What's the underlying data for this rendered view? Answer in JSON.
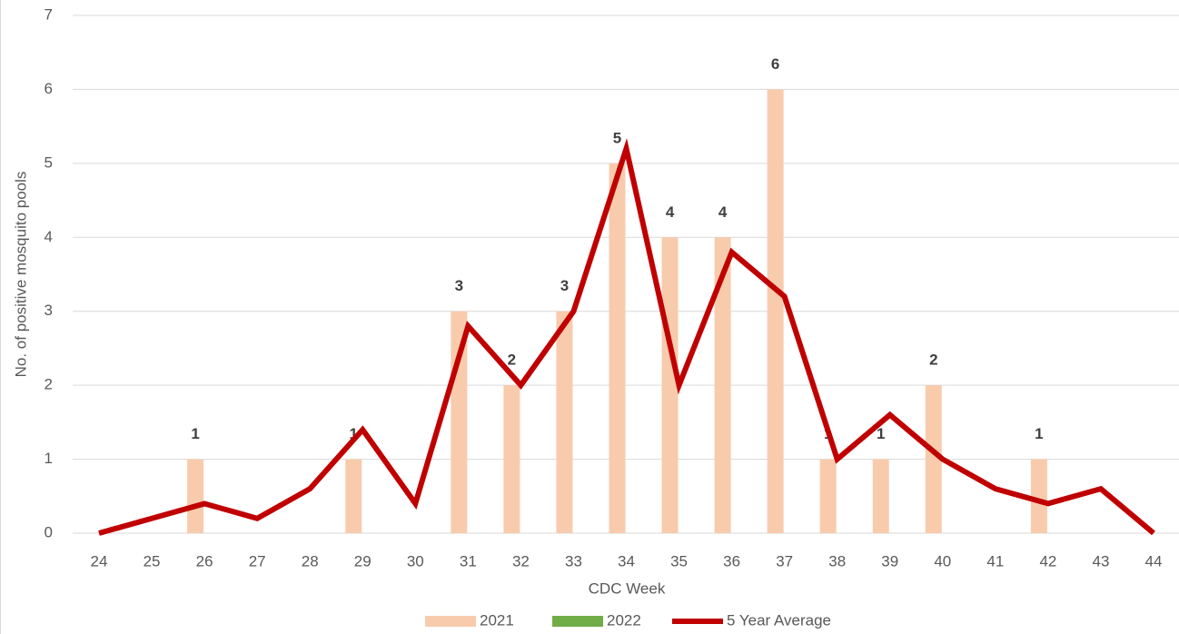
{
  "chart_data": {
    "type": "bar",
    "x_label": "CDC Week",
    "y_label": "No. of positive mosquito pools",
    "categories": [
      "24",
      "25",
      "26",
      "27",
      "28",
      "29",
      "30",
      "31",
      "32",
      "33",
      "34",
      "35",
      "36",
      "37",
      "38",
      "39",
      "40",
      "41",
      "42",
      "43",
      "44"
    ],
    "series": [
      {
        "name": "2021",
        "type": "bar",
        "color": "#f8cbad",
        "values": [
          null,
          null,
          1,
          null,
          null,
          1,
          null,
          3,
          2,
          3,
          5,
          4,
          4,
          6,
          1,
          1,
          2,
          null,
          1,
          null,
          null
        ]
      },
      {
        "name": "2022",
        "type": "bar",
        "color": "#70ad47",
        "values": [
          null,
          null,
          null,
          null,
          null,
          null,
          null,
          null,
          null,
          null,
          null,
          null,
          null,
          null,
          null,
          null,
          null,
          null,
          null,
          null,
          null
        ]
      },
      {
        "name": "5 Year Average",
        "type": "line",
        "color": "#c00000",
        "values": [
          0,
          0.2,
          0.4,
          0.2,
          0.6,
          1.4,
          0.4,
          2.8,
          2,
          3,
          5.2,
          2,
          3.8,
          3.2,
          1,
          1.6,
          1,
          0.6,
          0.4,
          0.6,
          0
        ]
      }
    ],
    "ylim": [
      0,
      7
    ],
    "yticks": [
      0,
      1,
      2,
      3,
      4,
      5,
      6,
      7
    ],
    "grid": true,
    "legend": "bottom"
  }
}
